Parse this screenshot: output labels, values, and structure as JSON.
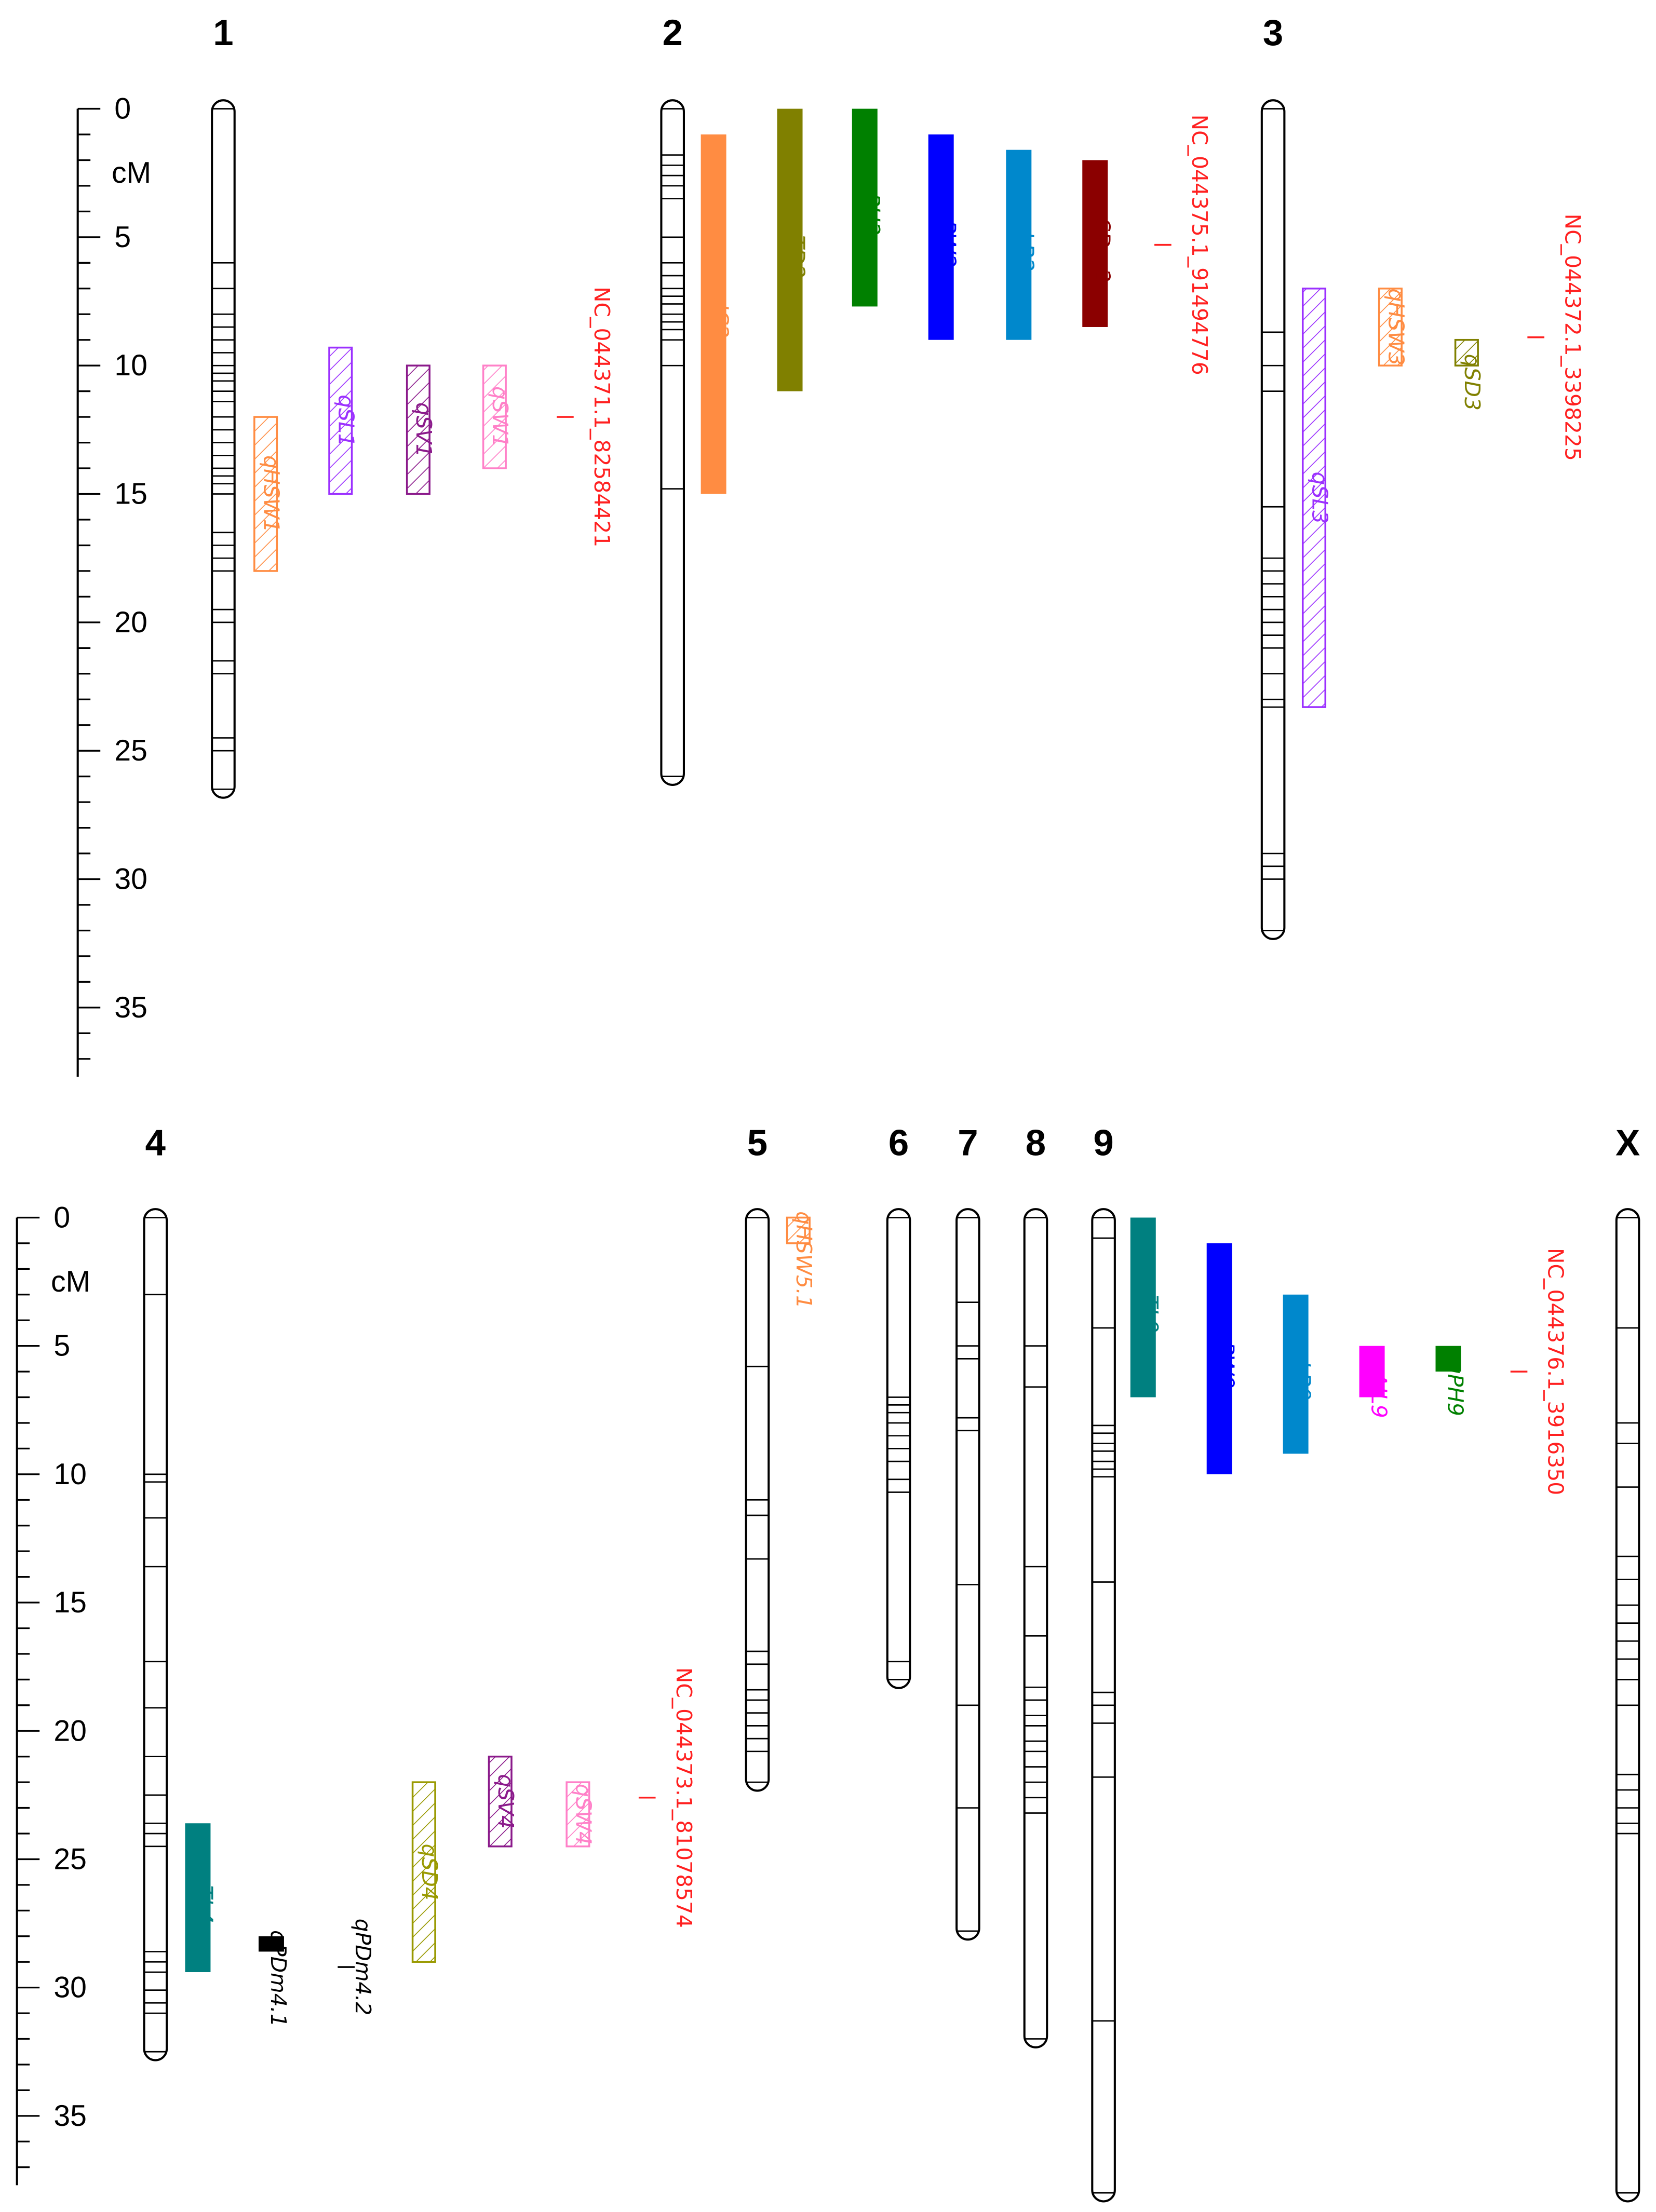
{
  "axis": {
    "unit": "cM",
    "ticks": [
      0,
      5,
      10,
      15,
      20,
      25,
      30,
      35
    ],
    "max": 37.7
  },
  "panels": [
    {
      "chromosomes": [
        {
          "name": "1",
          "length": 26.5,
          "markers": [
            6,
            7,
            8,
            8.5,
            9,
            9.5,
            10,
            10.3,
            10.6,
            11,
            11.4,
            12,
            12.5,
            13,
            13.5,
            14,
            14.3,
            14.6,
            15,
            16.5,
            17,
            17.5,
            18,
            19.5,
            20,
            21.5,
            22,
            24.5,
            25
          ]
        },
        {
          "name": "2",
          "length": 26,
          "markers": [
            1.8,
            2.2,
            2.6,
            3,
            3.5,
            5,
            6,
            6.5,
            7,
            7.3,
            7.6,
            8,
            8.3,
            8.6,
            9,
            10,
            14.8
          ]
        },
        {
          "name": "3",
          "length": 32,
          "markers": [
            8.7,
            10,
            11,
            15.5,
            17.5,
            18,
            18.5,
            19,
            19.5,
            20,
            20.5,
            21,
            22,
            23,
            23.3,
            29,
            29.5,
            30
          ]
        }
      ],
      "qtls": [
        {
          "label": "qHSW1",
          "chr": "1",
          "start": 12,
          "end": 18,
          "color": "#ff8c42",
          "style": "hatched"
        },
        {
          "label": "qSL1",
          "chr": "1",
          "start": 9.3,
          "end": 15,
          "color": "#9b30ff",
          "style": "hatched"
        },
        {
          "label": "qSV1",
          "chr": "1",
          "start": 10,
          "end": 15,
          "color": "#8b1a8b",
          "style": "hatched"
        },
        {
          "label": "qSW1",
          "chr": "1",
          "start": 10,
          "end": 14,
          "color": "#ff80c8",
          "style": "hatched"
        },
        {
          "label": "NC_044371.1_82584421",
          "chr": "1",
          "start": 12,
          "end": 12,
          "color": "#ff2020",
          "style": "marker"
        },
        {
          "label": "qIC2",
          "chr": "2",
          "start": 1,
          "end": 15,
          "color": "#ff8c42",
          "style": "filled"
        },
        {
          "label": "qTD2",
          "chr": "2",
          "start": 0,
          "end": 11,
          "color": "#808000",
          "style": "filled"
        },
        {
          "label": "qPH2",
          "chr": "2",
          "start": 0,
          "end": 7.7,
          "color": "#008000",
          "style": "filled"
        },
        {
          "label": "qPW2",
          "chr": "2",
          "start": 1,
          "end": 9,
          "color": "#0000ff",
          "style": "filled"
        },
        {
          "label": "qLB2",
          "chr": "2",
          "start": 1.6,
          "end": 9,
          "color": "#0088cc",
          "style": "filled"
        },
        {
          "label": "qSDm2",
          "chr": "2",
          "start": 2,
          "end": 8.5,
          "color": "#8b0000",
          "style": "filled"
        },
        {
          "label": "NC_044375.1_91494776",
          "chr": "2",
          "start": 5.3,
          "end": 5.3,
          "color": "#ff2020",
          "style": "marker"
        },
        {
          "label": "qSL3",
          "chr": "3",
          "start": 7,
          "end": 23.3,
          "color": "#9b30ff",
          "style": "hatched"
        },
        {
          "label": "qHSW3",
          "chr": "3",
          "start": 7,
          "end": 10,
          "color": "#ff8c42",
          "style": "hatched"
        },
        {
          "label": "qSD3",
          "chr": "3",
          "start": 9,
          "end": 10,
          "color": "#808000",
          "style": "hatched"
        },
        {
          "label": "NC_044372.1_3398225",
          "chr": "3",
          "start": 8.9,
          "end": 8.9,
          "color": "#ff2020",
          "style": "marker"
        }
      ]
    },
    {
      "chromosomes": [
        {
          "name": "4",
          "length": 32.5,
          "markers": [
            3,
            10,
            10.3,
            11.7,
            13.6,
            17.3,
            19.1,
            21,
            22.5,
            23.6,
            24,
            24.5,
            28.6,
            29,
            29.4,
            30.1,
            30.6,
            31
          ]
        },
        {
          "name": "5",
          "length": 22,
          "markers": [
            5.8,
            11,
            11.6,
            13.3,
            16.9,
            17.4,
            18.4,
            18.8,
            19.3,
            19.8,
            20.3,
            20.8
          ]
        },
        {
          "name": "6",
          "length": 18,
          "markers": [
            7,
            7.3,
            7.6,
            8,
            8.5,
            9,
            9.5,
            10.2,
            10.7,
            17.3
          ]
        },
        {
          "name": "7",
          "length": 27.8,
          "markers": [
            3.3,
            5,
            5.5,
            7.8,
            8.3,
            14.3,
            19,
            23
          ]
        },
        {
          "name": "8",
          "length": 32,
          "markers": [
            5,
            6.6,
            13.6,
            16.3,
            18.3,
            18.8,
            19.4,
            19.8,
            20.4,
            20.8,
            21.4,
            22,
            22.6,
            23.2
          ]
        },
        {
          "name": "9",
          "length": 38,
          "markers": [
            0.8,
            4.3,
            8.1,
            8.4,
            8.8,
            9.1,
            9.5,
            9.8,
            10.1,
            14.2,
            18.5,
            19,
            19.7,
            21.8,
            31.3
          ]
        },
        {
          "name": "X",
          "length": 38,
          "markers": [
            4.3,
            8,
            8.8,
            10.5,
            13.2,
            14.1,
            15.1,
            15.8,
            16.5,
            17.2,
            18,
            19,
            21.7,
            22.3,
            23,
            23.6,
            24
          ]
        }
      ],
      "qtls": [
        {
          "label": "qTL4",
          "chr": "4",
          "start": 23.6,
          "end": 29.4,
          "color": "#008080",
          "style": "filled"
        },
        {
          "label": "qPDm4.1",
          "chr": "4",
          "start": 28,
          "end": 28.6,
          "color": "#000000",
          "style": "filled"
        },
        {
          "label": "qPDm4.2",
          "chr": "4",
          "start": 29.2,
          "end": 29.2,
          "color": "#000000",
          "style": "marker"
        },
        {
          "label": "qSD4",
          "chr": "4",
          "start": 22,
          "end": 29,
          "color": "#999900",
          "style": "hatched"
        },
        {
          "label": "qSV4",
          "chr": "4",
          "start": 21,
          "end": 24.5,
          "color": "#8b1a8b",
          "style": "hatched"
        },
        {
          "label": "qSW4",
          "chr": "4",
          "start": 22,
          "end": 24.5,
          "color": "#ff80c8",
          "style": "hatched"
        },
        {
          "label": "NC_044373.1_81078574",
          "chr": "4",
          "start": 22.6,
          "end": 22.6,
          "color": "#ff2020",
          "style": "marker"
        },
        {
          "label": "qHSW5.1",
          "chr": "5",
          "start": 0,
          "end": 1,
          "color": "#ff8c42",
          "style": "hatched"
        },
        {
          "label": "qTL9",
          "chr": "9",
          "start": 0,
          "end": 7,
          "color": "#008080",
          "style": "filled"
        },
        {
          "label": "qPW9",
          "chr": "9",
          "start": 1,
          "end": 10,
          "color": "#0000ff",
          "style": "filled"
        },
        {
          "label": "qLB9",
          "chr": "9",
          "start": 3,
          "end": 9.2,
          "color": "#0088cc",
          "style": "filled"
        },
        {
          "label": "qAIL9",
          "chr": "9",
          "start": 5,
          "end": 7,
          "color": "#ff00ff",
          "style": "filled"
        },
        {
          "label": "qPH9",
          "chr": "9",
          "start": 5,
          "end": 6,
          "color": "#008000",
          "style": "filled"
        },
        {
          "label": "NC_044376.1_3916350",
          "chr": "9",
          "start": 6,
          "end": 6,
          "color": "#ff2020",
          "style": "marker"
        }
      ]
    }
  ]
}
